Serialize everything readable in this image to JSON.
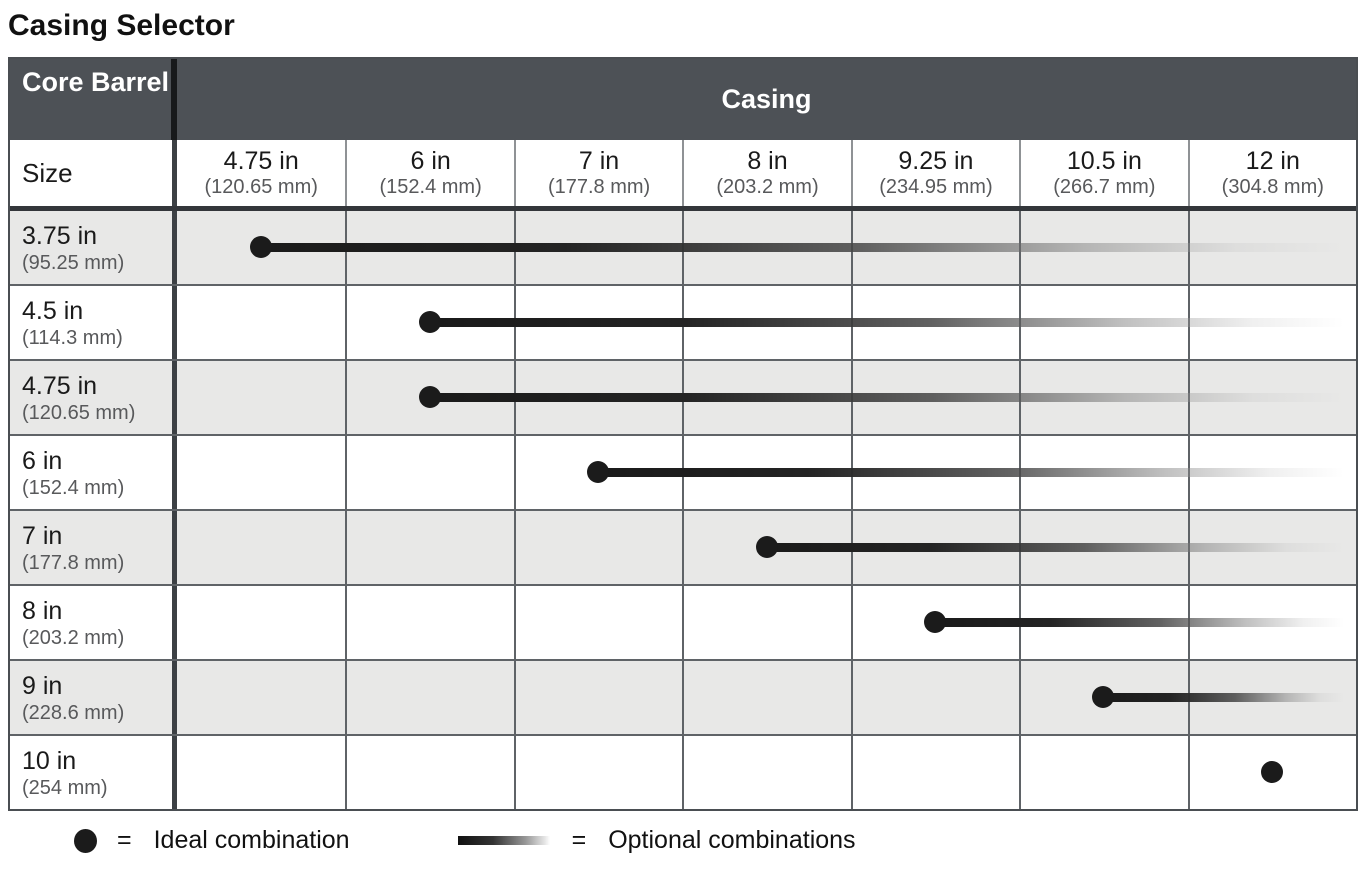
{
  "title": "Casing Selector",
  "table": {
    "corner_header": "Core Barrel",
    "casing_header": "Casing",
    "size_header": "Size",
    "columns": [
      {
        "size": "4.75 in",
        "mm": "(120.65 mm)"
      },
      {
        "size": "6 in",
        "mm": "(152.4 mm)"
      },
      {
        "size": "7 in",
        "mm": "(177.8 mm)"
      },
      {
        "size": "8 in",
        "mm": "(203.2 mm)"
      },
      {
        "size": "9.25 in",
        "mm": "(234.95 mm)"
      },
      {
        "size": "10.5 in",
        "mm": "(266.7 mm)"
      },
      {
        "size": "12 in",
        "mm": "(304.8 mm)"
      }
    ],
    "rows": [
      {
        "size": "3.75 in",
        "mm": "(95.25 mm)",
        "ideal_col": 0,
        "has_line": true
      },
      {
        "size": "4.5 in",
        "mm": "(114.3 mm)",
        "ideal_col": 1,
        "has_line": true
      },
      {
        "size": "4.75 in",
        "mm": "(120.65 mm)",
        "ideal_col": 1,
        "has_line": true
      },
      {
        "size": "6 in",
        "mm": "(152.4 mm)",
        "ideal_col": 2,
        "has_line": true
      },
      {
        "size": "7 in",
        "mm": "(177.8 mm)",
        "ideal_col": 3,
        "has_line": true
      },
      {
        "size": "8 in",
        "mm": "(203.2 mm)",
        "ideal_col": 4,
        "has_line": true
      },
      {
        "size": "9 in",
        "mm": "(228.6 mm)",
        "ideal_col": 5,
        "has_line": true
      },
      {
        "size": "10 in",
        "mm": "(254 mm)",
        "ideal_col": 6,
        "has_line": false
      }
    ]
  },
  "legend": {
    "equals": "=",
    "ideal_label": "Ideal combination",
    "optional_label": "Optional combinations"
  },
  "colors": {
    "header_bg": "#4d5156",
    "header_text": "#ffffff",
    "row_alt": "#e8e8e7",
    "grid_line": "#5f6367",
    "ink": "#1a1a1a",
    "muted_mm_text": "#58595b",
    "marker": "#1b1b1b"
  },
  "chart_data": {
    "type": "table",
    "title": "Casing Selector",
    "row_header": "Core Barrel",
    "col_header": "Casing",
    "columns": [
      "4.75 in (120.65 mm)",
      "6 in (152.4 mm)",
      "7 in (177.8 mm)",
      "8 in (203.2 mm)",
      "9.25 in (234.95 mm)",
      "10.5 in (266.7 mm)",
      "12 in (304.8 mm)"
    ],
    "rows": [
      {
        "core_barrel": "3.75 in (95.25 mm)",
        "ideal_casing": "4.75 in",
        "optional_casings": [
          "6 in",
          "7 in",
          "8 in",
          "9.25 in",
          "10.5 in",
          "12 in"
        ]
      },
      {
        "core_barrel": "4.5 in (114.3 mm)",
        "ideal_casing": "6 in",
        "optional_casings": [
          "7 in",
          "8 in",
          "9.25 in",
          "10.5 in",
          "12 in"
        ]
      },
      {
        "core_barrel": "4.75 in (120.65 mm)",
        "ideal_casing": "6 in",
        "optional_casings": [
          "7 in",
          "8 in",
          "9.25 in",
          "10.5 in",
          "12 in"
        ]
      },
      {
        "core_barrel": "6 in (152.4 mm)",
        "ideal_casing": "7 in",
        "optional_casings": [
          "8 in",
          "9.25 in",
          "10.5 in",
          "12 in"
        ]
      },
      {
        "core_barrel": "7 in (177.8 mm)",
        "ideal_casing": "8 in",
        "optional_casings": [
          "9.25 in",
          "10.5 in",
          "12 in"
        ]
      },
      {
        "core_barrel": "8 in (203.2 mm)",
        "ideal_casing": "9.25 in",
        "optional_casings": [
          "10.5 in",
          "12 in"
        ]
      },
      {
        "core_barrel": "9 in (228.6 mm)",
        "ideal_casing": "10.5 in",
        "optional_casings": [
          "12 in"
        ]
      },
      {
        "core_barrel": "10 in (254 mm)",
        "ideal_casing": "12 in",
        "optional_casings": []
      }
    ],
    "legend": {
      "dot": "Ideal combination",
      "fading_line": "Optional combinations"
    }
  }
}
